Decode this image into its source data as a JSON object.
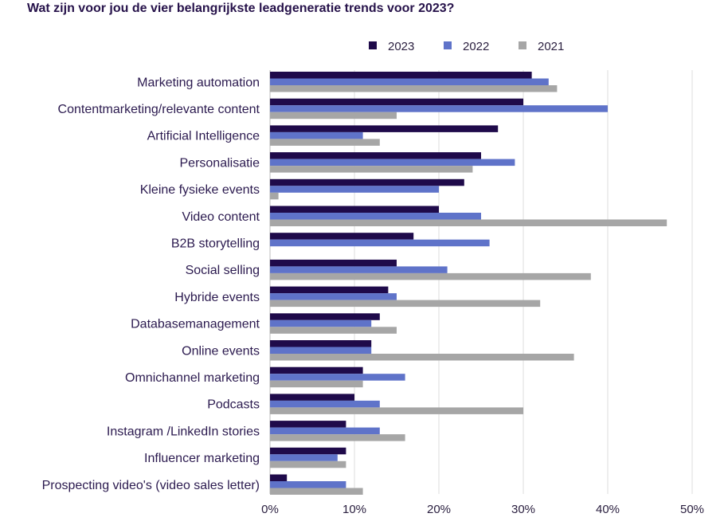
{
  "chart_data": {
    "type": "bar",
    "orientation": "horizontal",
    "title": "Wat zijn voor jou de vier belangrijkste leadgeneratie trends voor 2023?",
    "categories": [
      "Marketing automation",
      "Contentmarketing/relevante content",
      "Artificial Intelligence",
      "Personalisatie",
      "Kleine fysieke events",
      "Video content",
      "B2B storytelling",
      "Social selling",
      "Hybride events",
      "Databasemanagement",
      "Online events",
      "Omnichannel marketing",
      "Podcasts",
      "Instagram /LinkedIn stories",
      "Influencer marketing",
      "Prospecting video's (video sales letter)"
    ],
    "series": [
      {
        "name": "2023",
        "color": "#1f0a4a",
        "values": [
          31,
          30,
          27,
          25,
          23,
          20,
          17,
          15,
          14,
          13,
          12,
          11,
          10,
          9,
          9,
          2
        ]
      },
      {
        "name": "2022",
        "color": "#5f73c9",
        "values": [
          33,
          40,
          11,
          29,
          20,
          25,
          26,
          21,
          15,
          12,
          12,
          16,
          13,
          13,
          8,
          9
        ]
      },
      {
        "name": "2021",
        "color": "#a6a6a6",
        "values": [
          34,
          15,
          13,
          24,
          1,
          47,
          0,
          38,
          32,
          15,
          36,
          11,
          30,
          16,
          9,
          11
        ]
      }
    ],
    "xlim": [
      0,
      50
    ],
    "xticks": [
      "0%",
      "10%",
      "20%",
      "30%",
      "40%",
      "50%"
    ],
    "grid": true,
    "legend_position": "top-right"
  }
}
